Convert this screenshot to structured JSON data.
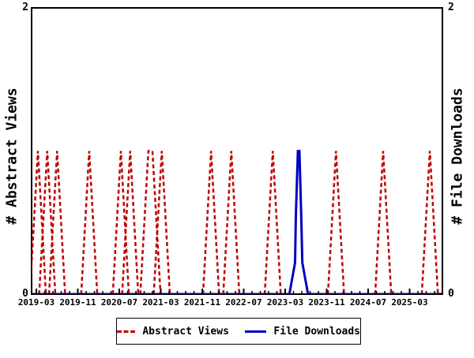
{
  "window": {
    "background": "#ffffff",
    "frame_color": "#000000"
  },
  "chart_data": {
    "type": "line",
    "title": "",
    "ylabel_left": "# Abstract Views",
    "ylabel_right": "# File Downloads",
    "ylim": [
      0,
      2
    ],
    "y_ticks": [
      "0",
      "2"
    ],
    "x_tick_labels": [
      "2019-03",
      "2019-11",
      "2020-07",
      "2021-03",
      "2021-11",
      "2022-07",
      "2023-03",
      "2023-11",
      "2024-07",
      "2025-03"
    ],
    "x_months_between_ticks": 8,
    "x_start_label": "2019-03",
    "grid": false,
    "legend": {
      "position": "bottom-center",
      "border": true
    },
    "series": [
      {
        "name": "Abstract Views",
        "color": "#bf0000",
        "line_style": "dashed",
        "axis": "left",
        "baseline_value": 0,
        "peak_value": 1,
        "spike_half_width_months": 1.55,
        "spikes_t_months": [
          [
            0.3,
            0.3
          ],
          [
            2.1,
            2.1
          ],
          [
            4.0,
            4.0
          ],
          [
            10.2,
            10.2
          ],
          [
            16.3,
            16.3
          ],
          [
            18.1,
            18.1
          ],
          [
            21.6,
            22.4
          ],
          [
            24.2,
            24.2
          ],
          [
            33.7,
            33.7
          ],
          [
            37.6,
            37.6
          ],
          [
            45.6,
            45.6
          ],
          [
            57.8,
            57.8
          ],
          [
            66.9,
            66.9
          ],
          [
            75.9,
            75.9
          ]
        ],
        "peak_dates_approx": [
          "2019-03",
          "2019-05",
          "2019-07",
          "2020-01",
          "2020-07",
          "2020-09",
          "2021-01",
          "2021-03",
          "2022-01",
          "2022-05",
          "2023-01",
          "2024-01",
          "2024-10",
          "2025-07"
        ]
      },
      {
        "name": "File Downloads",
        "color": "#0000bf",
        "line_style": "solid",
        "axis": "right",
        "baseline_value": 0,
        "peak_value": 1,
        "spike_points_t_value": [
          [
            48.8,
            0
          ],
          [
            49.9,
            0.22
          ],
          [
            50.05,
            0.55
          ],
          [
            50.45,
            1
          ],
          [
            50.75,
            1
          ],
          [
            51.1,
            0.55
          ],
          [
            51.3,
            0.22
          ],
          [
            52.4,
            0
          ]
        ],
        "peak_dates_approx": [
          "2023-05"
        ]
      }
    ]
  }
}
